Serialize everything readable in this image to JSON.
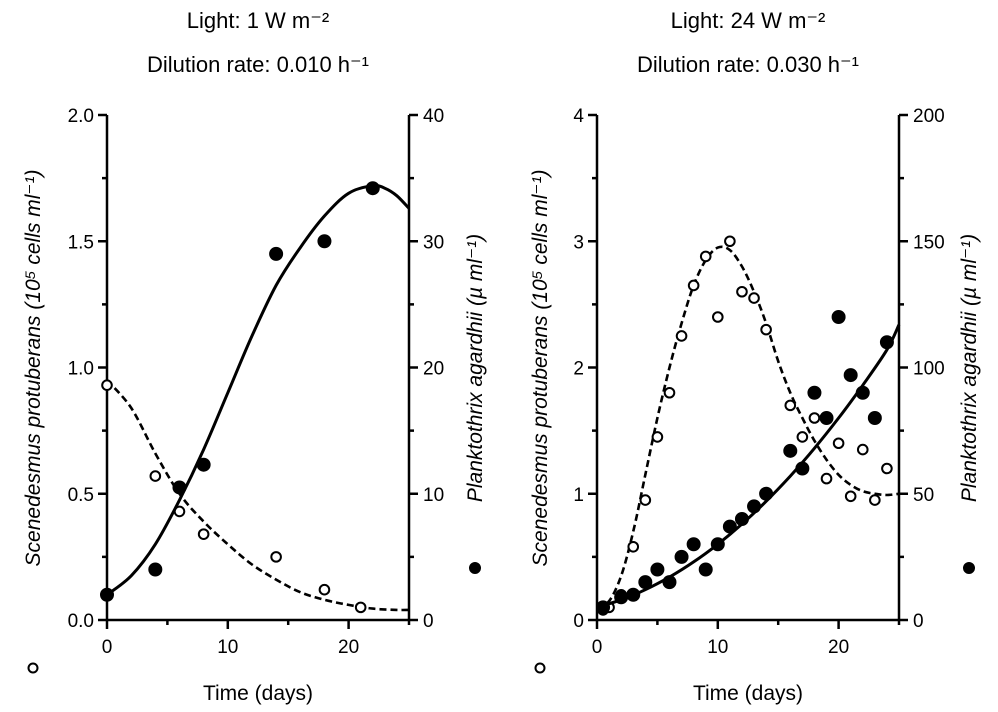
{
  "chart_data": [
    {
      "type": "scatter",
      "title_lines": [
        "Light: 1 W m⁻²",
        "Dilution rate: 0.010 h⁻¹"
      ],
      "xlabel": "Time  (days)",
      "ylabel_left": "Scenedesmus protuberans  (10⁵ cells ml⁻¹)",
      "ylabel_right": "Planktothrix agardhii  (µ ml⁻¹)",
      "xlim": [
        0,
        25
      ],
      "ylim_left": [
        0,
        2.0
      ],
      "ylim_right": [
        0,
        40
      ],
      "xticks": [
        0,
        10,
        20
      ],
      "xtick_labels": [
        "0",
        "10",
        "20"
      ],
      "yticks_left": [
        0,
        0.5,
        1.0,
        1.5,
        2.0
      ],
      "ytick_labels_left": [
        "0.0",
        "0.5",
        "1.0",
        "1.5",
        "2.0"
      ],
      "yticks_right": [
        0,
        10,
        20,
        30,
        40
      ],
      "ytick_labels_right": [
        "0",
        "10",
        "20",
        "30",
        "40"
      ],
      "series": [
        {
          "marker": "open-circle",
          "axis": "left",
          "fit_style": "dashed",
          "x": [
            0,
            4,
            6,
            8,
            14,
            18,
            21
          ],
          "y": [
            0.93,
            0.57,
            0.43,
            0.34,
            0.25,
            0.12,
            0.05
          ],
          "fit_curve": {
            "x": [
              0,
              2,
              4,
              6,
              8,
              10,
              12,
              14,
              16,
              18,
              20,
              22,
              24,
              25
            ],
            "y": [
              0.95,
              0.84,
              0.66,
              0.5,
              0.39,
              0.3,
              0.22,
              0.16,
              0.11,
              0.08,
              0.06,
              0.045,
              0.04,
              0.04
            ]
          }
        },
        {
          "marker": "filled-circle",
          "axis": "right",
          "fit_style": "solid",
          "x": [
            0,
            4,
            6,
            8,
            14,
            18,
            22
          ],
          "y": [
            2,
            4,
            10.5,
            12.3,
            29,
            30,
            34.2
          ],
          "fit_curve": {
            "x": [
              0,
              2,
              4,
              6,
              8,
              10,
              12,
              14,
              16,
              18,
              20,
              22,
              23,
              24,
              25
            ],
            "y": [
              2,
              3.5,
              6,
              9.5,
              13.5,
              18,
              22.5,
              26.5,
              29.5,
              32,
              33.8,
              34.4,
              34.2,
              33.6,
              32.6
            ]
          }
        }
      ]
    },
    {
      "type": "scatter",
      "title_lines": [
        "Light: 24 W m⁻²",
        "Dilution rate: 0.030 h⁻¹"
      ],
      "xlabel": "Time  (days)",
      "ylabel_left": "Scenedesmus protuberans  (10⁵ cells ml⁻¹)",
      "ylabel_right": "Planktothrix agardhii  (µ ml⁻¹)",
      "xlim": [
        0,
        25
      ],
      "ylim_left": [
        0,
        4
      ],
      "ylim_right": [
        0,
        200
      ],
      "xticks": [
        0,
        10,
        20
      ],
      "xtick_labels": [
        "0",
        "10",
        "20"
      ],
      "yticks_left": [
        0,
        1,
        2,
        3,
        4
      ],
      "ytick_labels_left": [
        "0",
        "1",
        "2",
        "3",
        "4"
      ],
      "yticks_right": [
        0,
        50,
        100,
        150,
        200
      ],
      "ytick_labels_right": [
        "0",
        "50",
        "100",
        "150",
        "200"
      ],
      "series": [
        {
          "marker": "open-circle",
          "axis": "left",
          "fit_style": "dashed",
          "x": [
            0.5,
            1,
            2,
            3,
            4,
            5,
            6,
            7,
            8,
            9,
            10,
            11,
            12,
            13,
            14,
            16,
            17,
            18,
            19,
            20,
            21,
            22,
            23,
            24
          ],
          "y": [
            0.08,
            0.1,
            0.2,
            0.58,
            0.95,
            1.45,
            1.8,
            2.25,
            2.65,
            2.88,
            2.4,
            3.0,
            2.6,
            2.55,
            2.3,
            1.7,
            1.45,
            1.6,
            1.12,
            1.4,
            0.98,
            1.35,
            0.95,
            1.2
          ],
          "fit_curve": {
            "x": [
              0,
              1,
              2,
              3,
              4,
              5,
              6,
              7,
              8,
              9,
              10,
              11,
              12,
              13,
              14,
              15,
              16,
              17,
              18,
              19,
              20,
              21,
              22,
              23,
              24,
              25
            ],
            "y": [
              0.1,
              0.15,
              0.35,
              0.7,
              1.15,
              1.6,
              2.0,
              2.35,
              2.65,
              2.85,
              2.95,
              2.93,
              2.8,
              2.6,
              2.35,
              2.05,
              1.8,
              1.6,
              1.42,
              1.27,
              1.15,
              1.07,
              1.02,
              1.0,
              0.99,
              1.0
            ]
          }
        },
        {
          "marker": "filled-circle",
          "axis": "right",
          "fit_style": "solid",
          "x": [
            0.5,
            2,
            3,
            4,
            5,
            6,
            7,
            8,
            9,
            10,
            11,
            12,
            13,
            14,
            16,
            17,
            18,
            19,
            20,
            21,
            22,
            23,
            24
          ],
          "y": [
            5,
            9,
            10,
            15,
            20,
            15,
            25,
            30,
            20,
            30,
            37,
            40,
            45,
            50,
            67,
            60,
            90,
            80,
            120,
            97,
            90,
            80,
            110
          ],
          "fit_curve": {
            "x": [
              0,
              2,
              4,
              6,
              8,
              10,
              12,
              14,
              16,
              18,
              20,
              22,
              24,
              25
            ],
            "y": [
              5,
              8,
              12,
              17,
              23,
              30,
              38,
              47,
              57,
              68,
              80,
              93,
              107,
              117
            ]
          }
        }
      ]
    }
  ]
}
